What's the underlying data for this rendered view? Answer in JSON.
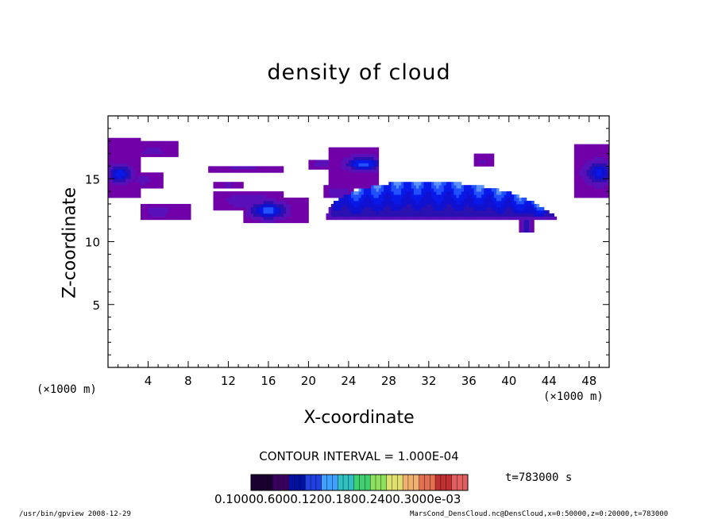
{
  "labels": {
    "title": "density of cloud",
    "xlabel": "X-coordinate",
    "ylabel": "Z-coordinate",
    "x_unit_left": "(×1000 m)",
    "x_unit_right": "(×1000 m)",
    "contour_interval": "CONTOUR INTERVAL = 1.000E-04",
    "time": "t=783000 s",
    "colorbar_ticks": "0.10000.6000.1200.1800.2400.3000e-03",
    "footer_left": "/usr/bin/gpview   2008-12-29",
    "footer_right": "MarsCond_DensCloud.nc@DensCloud,x=0:50000,z=0:20000,t=783000"
  },
  "chart_data": {
    "type": "heatmap",
    "title": "density of cloud",
    "xlabel": "X-coordinate",
    "ylabel": "Z-coordinate",
    "xlim": [
      0,
      50
    ],
    "ylim": [
      0,
      20
    ],
    "x_ticks": [
      4,
      8,
      12,
      16,
      20,
      24,
      28,
      32,
      36,
      40,
      44,
      48
    ],
    "y_ticks": [
      5,
      10,
      15
    ],
    "x_minor_step": 1,
    "y_minor_step": 1,
    "colorbar": {
      "colors": [
        "#1a0030",
        "#3a0060",
        "#0010a0",
        "#2040e0",
        "#40a0ff",
        "#30c0c0",
        "#40d070",
        "#90e060",
        "#e0e070",
        "#f0b070",
        "#e07050",
        "#c03030",
        "#e06060"
      ]
    },
    "regions": [
      {
        "x0": 0.1,
        "x1": 3.2,
        "z0": 13.5,
        "z1": 18.3,
        "cx": 1.2,
        "cz": 15.4,
        "rx": 1.0,
        "rz": 0.6,
        "peak": 0.6
      },
      {
        "x0": 3.2,
        "x1": 7.0,
        "z0": 16.7,
        "z1": 17.9,
        "cx": 4.5,
        "cz": 17.2,
        "rx": 1.0,
        "rz": 0.3,
        "peak": 0.15
      },
      {
        "x0": 2.3,
        "x1": 5.5,
        "z0": 14.3,
        "z1": 15.5,
        "cx": 3.5,
        "cz": 14.9,
        "rx": 0.8,
        "rz": 0.3,
        "peak": 0.15
      },
      {
        "x0": 3.3,
        "x1": 8.2,
        "z0": 11.7,
        "z1": 13.1,
        "cx": 5.0,
        "cz": 12.4,
        "rx": 1.0,
        "rz": 0.4,
        "peak": 0.2
      },
      {
        "x0": 10.0,
        "x1": 17.5,
        "z0": 15.6,
        "z1": 16.1,
        "cx": 13.5,
        "cz": 15.8,
        "rx": 2.0,
        "rz": 0.2,
        "peak": 0.1
      },
      {
        "x0": 10.5,
        "x1": 13.5,
        "z0": 14.3,
        "z1": 14.8,
        "cx": 12.0,
        "cz": 14.5,
        "rx": 1.0,
        "rz": 0.2,
        "peak": 0.1
      },
      {
        "x0": 10.5,
        "x1": 17.5,
        "z0": 12.6,
        "z1": 14.0,
        "cx": 14.0,
        "cz": 13.3,
        "rx": 2.0,
        "rz": 0.5,
        "peak": 0.2
      },
      {
        "x0": 13.5,
        "x1": 20.0,
        "z0": 11.5,
        "z1": 13.5,
        "cx": 16.0,
        "cz": 12.5,
        "rx": 1.5,
        "rz": 0.6,
        "peak": 0.7
      },
      {
        "x0": 20.0,
        "x1": 23.0,
        "z0": 15.8,
        "z1": 16.6,
        "cx": 21.3,
        "cz": 16.2,
        "rx": 0.8,
        "rz": 0.3,
        "peak": 0.15
      },
      {
        "x0": 22.0,
        "x1": 27.0,
        "z0": 14.3,
        "z1": 17.6,
        "cx": 25.5,
        "cz": 16.2,
        "rx": 1.5,
        "rz": 0.5,
        "peak": 0.7
      },
      {
        "x0": 21.5,
        "x1": 24.5,
        "z0": 13.4,
        "z1": 14.4,
        "cx": 23.0,
        "cz": 13.9,
        "rx": 1.0,
        "rz": 0.4,
        "peak": 0.2
      },
      {
        "x0": 36.5,
        "x1": 38.5,
        "z0": 15.9,
        "z1": 16.9,
        "cx": 37.4,
        "cz": 16.4,
        "rx": 0.5,
        "rz": 0.3,
        "peak": 0.1
      },
      {
        "x0": 46.5,
        "x1": 50.0,
        "z0": 13.5,
        "z1": 17.8,
        "cx": 49.0,
        "cz": 15.5,
        "rx": 1.3,
        "rz": 0.8,
        "peak": 0.5
      }
    ],
    "main_cloud": {
      "x0": 21.8,
      "x1": 45.0,
      "zbase": 11.7,
      "peak_x": 31.5,
      "peak_z": 14.8,
      "core": 1.0
    }
  }
}
